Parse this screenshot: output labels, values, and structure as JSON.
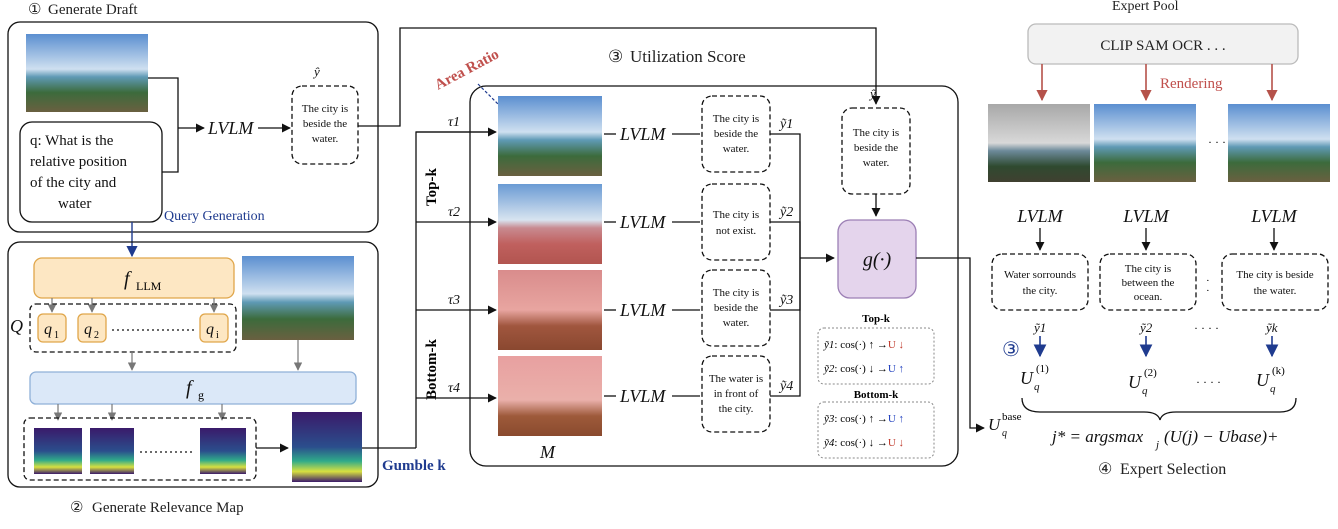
{
  "stages": {
    "draft_title": "Generate Draft",
    "draft_num": "①",
    "relevance_title": "Generate Relevance Map",
    "relevance_num": "②",
    "utilization_title": "Utilization Score",
    "utilization_num": "③",
    "expert_select_title": "Expert Selection",
    "expert_select_num": "④"
  },
  "draft": {
    "query_text": [
      "q: What is the",
      "relative position",
      "of the city and",
      "water"
    ],
    "lvlm": "LVLM",
    "yhat": "ŷ",
    "answer": [
      "The city is",
      "beside the",
      "water."
    ],
    "query_generation": "Query Generation"
  },
  "relevance": {
    "f_llm": "f",
    "f_llm_sub": "LLM",
    "f_g": "f",
    "f_g_sub": "g",
    "Q": "Q",
    "q_labels": [
      "q",
      "q",
      "q"
    ],
    "q_subs": [
      "1",
      "2",
      "i"
    ],
    "gumble": "Gumble k"
  },
  "utilization": {
    "area_ratio": "Area Ratio",
    "top_k": "Top-k",
    "bottom_k": "Bottom-k",
    "taus": [
      "τ1",
      "τ2",
      "τ3",
      "τ4"
    ],
    "lvlm": "LVLM",
    "answers": [
      {
        "lines": [
          "The city is",
          "beside the",
          "water."
        ],
        "color": "#c0392b",
        "y": "ỹ1"
      },
      {
        "lines": [
          "The city is",
          "not exist."
        ],
        "color": "#1f3fbf",
        "y": "ỹ2"
      },
      {
        "lines": [
          "The city is",
          "beside the",
          "water."
        ],
        "color": "#1f3fbf",
        "y": "ỹ3"
      },
      {
        "lines": [
          "The water is",
          "in front of",
          "the city."
        ],
        "color": "#c0392b",
        "y": "ỹ4"
      }
    ],
    "M": "M",
    "yhat": "ŷ",
    "draft_answer": [
      "The city is",
      "beside the",
      "water."
    ],
    "g": "g(·)",
    "legend_top": "Top-k",
    "legend_bottom": "Bottom-k",
    "legend_rows": [
      {
        "y": "ỹ1",
        "txt": ": cos(·) ↑ →",
        "u": "U ↓",
        "color": "#c0392b"
      },
      {
        "y": "ỹ2",
        "txt": ": cos(·) ↓ →",
        "u": "U ↑",
        "color": "#1f3fbf"
      },
      {
        "y": "ỹ3",
        "txt": ": cos(·) ↑ →",
        "u": "U ↑",
        "color": "#1f3fbf"
      },
      {
        "y": "ỹ4",
        "txt": ": cos(·) ↓ →",
        "u": "U ↓",
        "color": "#c0392b"
      }
    ]
  },
  "experts": {
    "pool_title": "Expert Pool",
    "pool": "CLIP  SAM  OCR . . .",
    "rendering": "Rendering",
    "lvlm": "LVLM",
    "answers": [
      [
        "Water sorrounds",
        "the city."
      ],
      [
        "The city is",
        "between the",
        "ocean."
      ],
      [
        "The city is beside",
        "the water."
      ]
    ],
    "ys": [
      "ỹ1",
      "ỹ2",
      "ỹk"
    ],
    "us": [
      "U",
      "U",
      "U"
    ],
    "u_sups": [
      "(1)",
      "(2)",
      "(k)"
    ],
    "u_sub": "q",
    "dots": "· · · ·",
    "ubase": "U",
    "ubase_sup": "base",
    "formula": "j* = argsmax",
    "formula_rest": "(U(j) − Ubase)+",
    "formula_sub": "j",
    "circle_three": "③"
  },
  "colors": {
    "red_arrow": "#b5524a",
    "blue": "#1f3b8f",
    "orange_fill": "#fde7c3",
    "orange_border": "#e0a64a",
    "blue_fill": "#dbe8f8",
    "blue_border": "#8fb0d8",
    "purple_fill": "#e4d4ec",
    "purple_border": "#9c7fb5"
  }
}
